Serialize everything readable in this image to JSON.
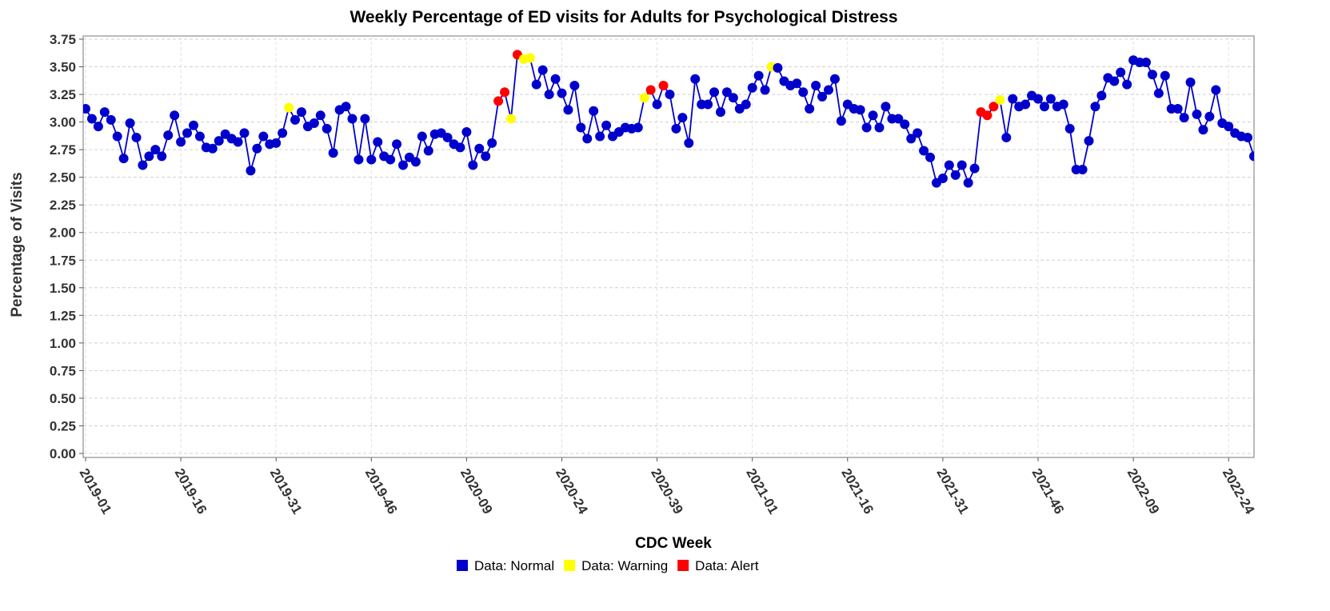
{
  "chart_data": {
    "type": "line",
    "title": "Weekly Percentage of ED visits for Adults for Psychological Distress",
    "x_label": "CDC Week",
    "y_label": "Percentage of Visits",
    "categories": [
      "2019-01",
      null,
      null,
      null,
      null,
      null,
      null,
      null,
      null,
      null,
      null,
      null,
      null,
      null,
      null,
      "2019-16",
      null,
      null,
      null,
      null,
      null,
      null,
      null,
      null,
      null,
      null,
      null,
      null,
      null,
      null,
      "2019-31",
      null,
      null,
      null,
      null,
      null,
      null,
      null,
      null,
      null,
      null,
      null,
      null,
      null,
      null,
      "2019-46",
      null,
      null,
      null,
      null,
      null,
      null,
      null,
      null,
      null,
      null,
      null,
      null,
      null,
      null,
      "2020-09",
      null,
      null,
      null,
      null,
      null,
      null,
      null,
      null,
      null,
      null,
      null,
      null,
      null,
      null,
      "2020-24",
      null,
      null,
      null,
      null,
      null,
      null,
      null,
      null,
      null,
      null,
      null,
      null,
      null,
      null,
      "2020-39",
      null,
      null,
      null,
      null,
      null,
      null,
      null,
      null,
      null,
      null,
      null,
      null,
      null,
      null,
      "2021-01",
      null,
      null,
      null,
      null,
      null,
      null,
      null,
      null,
      null,
      null,
      null,
      null,
      null,
      null,
      "2021-16",
      null,
      null,
      null,
      null,
      null,
      null,
      null,
      null,
      null,
      null,
      null,
      null,
      null,
      null,
      "2021-31",
      null,
      null,
      null,
      null,
      null,
      null,
      null,
      null,
      null,
      null,
      null,
      null,
      null,
      null,
      "2021-46",
      null,
      null,
      null,
      null,
      null,
      null,
      null,
      null,
      null,
      null,
      null,
      null,
      null,
      null,
      "2022-09",
      null,
      null,
      null,
      null,
      null,
      null,
      null,
      null,
      null,
      null,
      null,
      null,
      null,
      null,
      "2022-24",
      null,
      null,
      null,
      null
    ],
    "values": [
      3.12,
      3.03,
      2.96,
      3.09,
      3.02,
      2.87,
      2.67,
      2.99,
      2.86,
      2.61,
      2.69,
      2.75,
      2.69,
      2.88,
      3.06,
      2.82,
      2.9,
      2.97,
      2.87,
      2.77,
      2.76,
      2.83,
      2.89,
      2.85,
      2.82,
      2.9,
      2.56,
      2.76,
      2.87,
      2.8,
      2.81,
      2.9,
      3.13,
      3.02,
      3.09,
      2.96,
      2.99,
      3.06,
      2.94,
      2.72,
      3.11,
      3.14,
      3.03,
      2.66,
      3.03,
      2.66,
      2.82,
      2.69,
      2.66,
      2.8,
      2.61,
      2.68,
      2.64,
      2.87,
      2.74,
      2.89,
      2.9,
      2.86,
      2.8,
      2.77,
      2.91,
      2.61,
      2.76,
      2.69,
      2.81,
      3.19,
      3.27,
      3.03,
      3.61,
      3.57,
      3.58,
      3.34,
      3.47,
      3.25,
      3.39,
      3.26,
      3.11,
      3.33,
      2.95,
      2.85,
      3.1,
      2.87,
      2.97,
      2.87,
      2.91,
      2.95,
      2.94,
      2.95,
      3.22,
      3.29,
      3.16,
      3.33,
      3.25,
      2.94,
      3.04,
      2.81,
      3.39,
      3.16,
      3.16,
      3.27,
      3.09,
      3.27,
      3.22,
      3.12,
      3.16,
      3.31,
      3.42,
      3.29,
      3.5,
      3.49,
      3.37,
      3.33,
      3.35,
      3.27,
      3.12,
      3.33,
      3.23,
      3.29,
      3.39,
      3.01,
      3.16,
      3.12,
      3.11,
      2.95,
      3.06,
      2.95,
      3.14,
      3.03,
      3.03,
      2.98,
      2.85,
      2.9,
      2.74,
      2.68,
      2.45,
      2.49,
      2.61,
      2.52,
      2.61,
      2.45,
      2.58,
      3.09,
      3.06,
      3.14,
      3.2,
      2.86,
      3.21,
      3.14,
      3.16,
      3.24,
      3.21,
      3.14,
      3.21,
      3.14,
      3.16,
      2.94,
      2.57,
      2.57,
      2.83,
      3.14,
      3.24,
      3.4,
      3.37,
      3.45,
      3.34,
      3.56,
      3.54,
      3.54,
      3.43,
      3.26,
      3.42,
      3.12,
      3.12,
      3.04,
      3.36,
      3.07,
      2.93,
      3.05,
      3.29,
      2.99,
      2.96,
      2.9,
      2.87,
      2.86,
      2.69
    ],
    "point_status": [
      0,
      0,
      0,
      0,
      0,
      0,
      0,
      0,
      0,
      0,
      0,
      0,
      0,
      0,
      0,
      0,
      0,
      0,
      0,
      0,
      0,
      0,
      0,
      0,
      0,
      0,
      0,
      0,
      0,
      0,
      0,
      0,
      1,
      0,
      0,
      0,
      0,
      0,
      0,
      0,
      0,
      0,
      0,
      0,
      0,
      0,
      0,
      0,
      0,
      0,
      0,
      0,
      0,
      0,
      0,
      0,
      0,
      0,
      0,
      0,
      0,
      0,
      0,
      0,
      0,
      2,
      2,
      1,
      2,
      1,
      1,
      0,
      0,
      0,
      0,
      0,
      0,
      0,
      0,
      0,
      0,
      0,
      0,
      0,
      0,
      0,
      0,
      0,
      1,
      2,
      0,
      2,
      0,
      0,
      0,
      0,
      0,
      0,
      0,
      0,
      0,
      0,
      0,
      0,
      0,
      0,
      0,
      0,
      1,
      0,
      0,
      0,
      0,
      0,
      0,
      0,
      0,
      0,
      0,
      0,
      0,
      0,
      0,
      0,
      0,
      0,
      0,
      0,
      0,
      0,
      0,
      0,
      0,
      0,
      0,
      0,
      0,
      0,
      0,
      0,
      0,
      2,
      2,
      2,
      1,
      0,
      0,
      0,
      0,
      0,
      0,
      0,
      0,
      0,
      0,
      0,
      0,
      0,
      0,
      0,
      0,
      0,
      0,
      0,
      0,
      0,
      0,
      0,
      0,
      0,
      0,
      0,
      0,
      0,
      0,
      0,
      0,
      0,
      0,
      0,
      0,
      0,
      0,
      0,
      0
    ],
    "line_color": "#0000cc",
    "series": [
      {
        "name": "Data: Normal",
        "color": "#0000cc"
      },
      {
        "name": "Data: Warning",
        "color": "#ffff00"
      },
      {
        "name": "Data: Alert",
        "color": "#ff0000"
      }
    ],
    "ylim": [
      0,
      3.75
    ],
    "yticks": [
      {
        "value": 0,
        "label": "0.00"
      },
      {
        "value": 0.25,
        "label": "0.25"
      },
      {
        "value": 0.5,
        "label": "0.50"
      },
      {
        "value": 0.75,
        "label": "0.75"
      },
      {
        "value": 1,
        "label": "1.00"
      },
      {
        "value": 1.25,
        "label": "1.25"
      },
      {
        "value": 1.5,
        "label": "1.50"
      },
      {
        "value": 1.75,
        "label": "1.75"
      },
      {
        "value": 2,
        "label": "2.00"
      },
      {
        "value": 2.25,
        "label": "2.25"
      },
      {
        "value": 2.5,
        "label": "2.50"
      },
      {
        "value": 2.75,
        "label": "2.75"
      },
      {
        "value": 3,
        "label": "3.00"
      },
      {
        "value": 3.25,
        "label": "3.25"
      },
      {
        "value": 3.5,
        "label": "3.50"
      },
      {
        "value": 3.75,
        "label": "3.75"
      }
    ],
    "grid": true,
    "legend": "bottom"
  }
}
